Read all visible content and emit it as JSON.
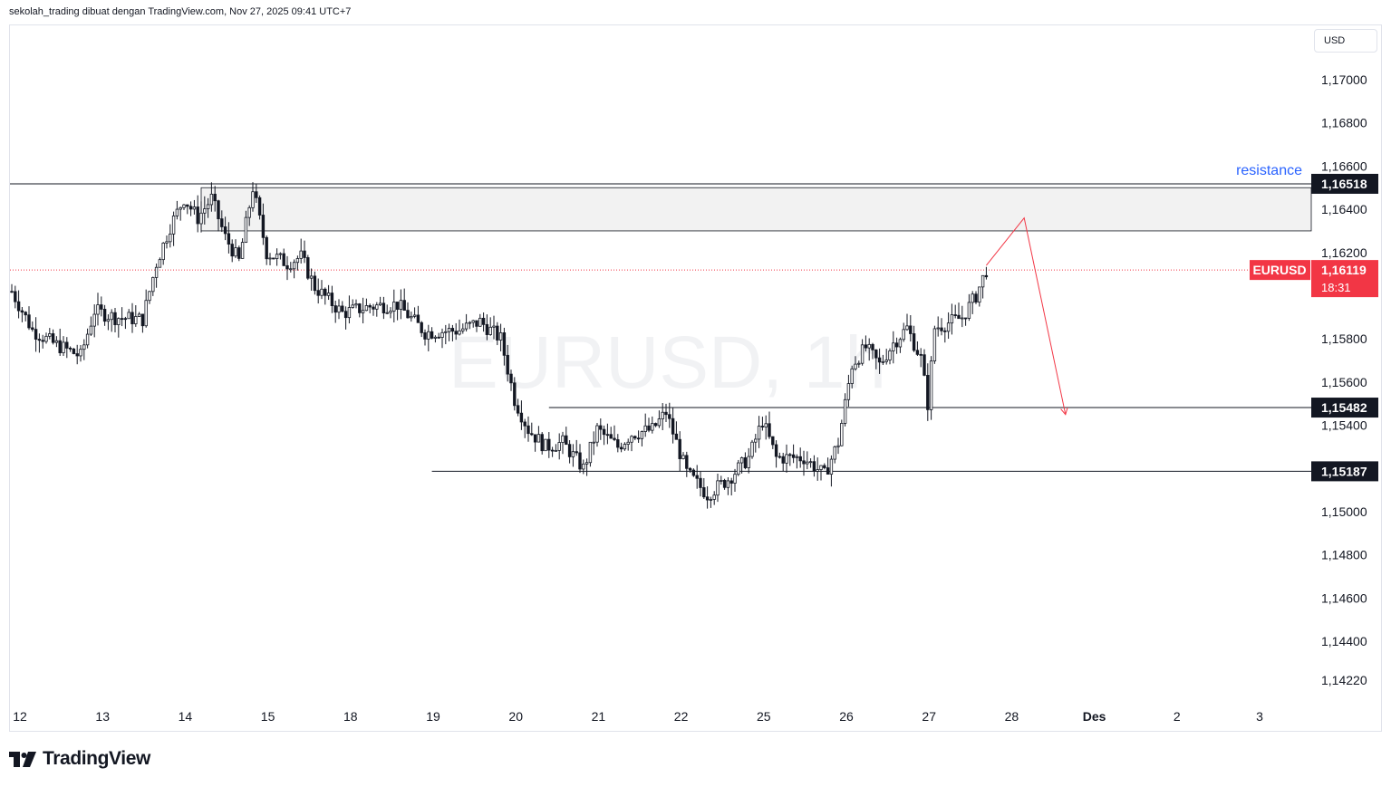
{
  "header": "sekolah_trading dibuat dengan TradingView.com, Nov 27, 2025 09:41 UTC+7",
  "currency_label": "USD",
  "watermark": "EURUSD, 1h",
  "logo_text": "TradingView",
  "colors": {
    "candle": "#131722",
    "accent_red": "#f23645",
    "resistance_text": "#2962ff",
    "zone_fill": "#f2f2f2",
    "watermark": "#f1f2f4"
  },
  "chart_data": {
    "type": "candlestick",
    "symbol": "EURUSD",
    "timeframe": "1h",
    "ylim": [
      1.1417,
      1.1727
    ],
    "y_ticks": [
      "1,17000",
      "1,16800",
      "1,16600",
      "1,16400",
      "1,16200",
      "1,15800",
      "1,15600",
      "1,15400",
      "1,15000",
      "1,14800",
      "1,14600",
      "1,14400",
      "1,14220"
    ],
    "y_tick_values": [
      1.17,
      1.168,
      1.166,
      1.164,
      1.162,
      1.158,
      1.156,
      1.154,
      1.15,
      1.148,
      1.146,
      1.144,
      1.1422
    ],
    "x_tick_labels": [
      "12",
      "13",
      "14",
      "15",
      "18",
      "19",
      "20",
      "21",
      "22",
      "25",
      "26",
      "27",
      "28",
      "Des",
      "2",
      "3"
    ],
    "x_tick_index": [
      0,
      24,
      48,
      72,
      96,
      120,
      144,
      168,
      192,
      216,
      240,
      264,
      288,
      312,
      336,
      360
    ],
    "price_path": [
      [
        0,
        1.1602
      ],
      [
        6,
        1.1584
      ],
      [
        12,
        1.1578
      ],
      [
        20,
        1.1572
      ],
      [
        24,
        1.1593
      ],
      [
        30,
        1.159
      ],
      [
        38,
        1.1589
      ],
      [
        42,
        1.1615
      ],
      [
        46,
        1.1632
      ],
      [
        50,
        1.1645
      ],
      [
        54,
        1.1636
      ],
      [
        58,
        1.1645
      ],
      [
        62,
        1.1627
      ],
      [
        66,
        1.1616
      ],
      [
        70,
        1.165
      ],
      [
        74,
        1.162
      ],
      [
        80,
        1.1615
      ],
      [
        84,
        1.1618
      ],
      [
        88,
        1.1604
      ],
      [
        96,
        1.1592
      ],
      [
        104,
        1.1595
      ],
      [
        112,
        1.1596
      ],
      [
        120,
        1.1583
      ],
      [
        130,
        1.1584
      ],
      [
        136,
        1.1588
      ],
      [
        142,
        1.158
      ],
      [
        146,
        1.1552
      ],
      [
        150,
        1.1538
      ],
      [
        155,
        1.153
      ],
      [
        160,
        1.1532
      ],
      [
        166,
        1.152
      ],
      [
        170,
        1.1538
      ],
      [
        176,
        1.153
      ],
      [
        180,
        1.1536
      ],
      [
        186,
        1.1538
      ],
      [
        190,
        1.1546
      ],
      [
        196,
        1.1518
      ],
      [
        202,
        1.1508
      ],
      [
        208,
        1.1515
      ],
      [
        214,
        1.1525
      ],
      [
        218,
        1.1542
      ],
      [
        222,
        1.1525
      ],
      [
        230,
        1.1525
      ],
      [
        236,
        1.1517
      ],
      [
        240,
        1.1532
      ],
      [
        244,
        1.1568
      ],
      [
        248,
        1.1576
      ],
      [
        252,
        1.1568
      ],
      [
        256,
        1.1578
      ],
      [
        260,
        1.1585
      ],
      [
        264,
        1.1571
      ],
      [
        266,
        1.155
      ],
      [
        268,
        1.1585
      ],
      [
        276,
        1.159
      ],
      [
        280,
        1.16
      ],
      [
        283,
        1.16119
      ]
    ],
    "seed": 7,
    "horizontal_levels": [
      {
        "label": "1,16518",
        "value": 1.16518,
        "from_index": 0
      },
      {
        "label": "1,15482",
        "value": 1.15482,
        "from_index": 156
      },
      {
        "label": "1,15187",
        "value": 1.15187,
        "from_index": 122
      }
    ],
    "resistance_zone": {
      "top": 1.165,
      "bottom": 1.163,
      "from_index": 55
    },
    "annotation": "resistance",
    "current_price": {
      "symbol": "EURUSD",
      "price": "1,16119",
      "value": 1.16119,
      "countdown": "18:31"
    },
    "projection": [
      [
        283,
        1.1614
      ],
      [
        294,
        1.1636
      ],
      [
        306,
        1.1545
      ]
    ]
  }
}
